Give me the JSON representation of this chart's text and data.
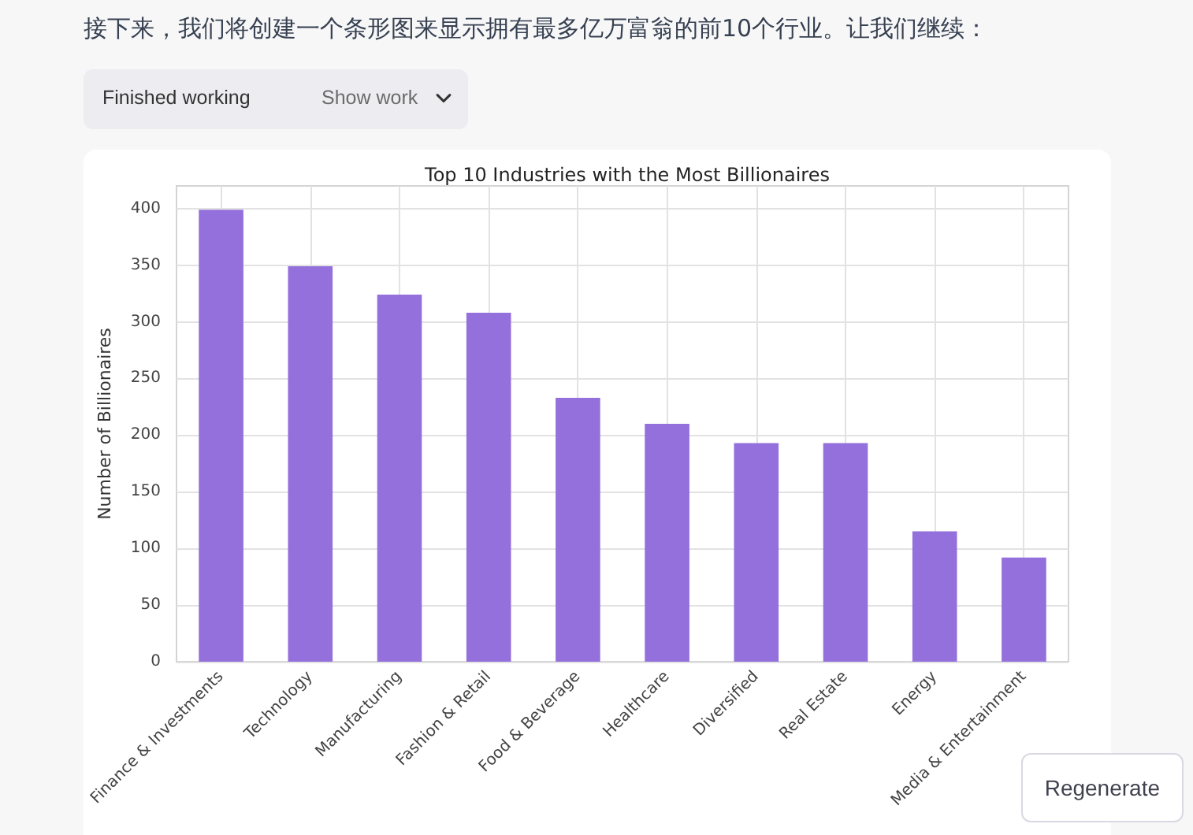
{
  "chart_data": {
    "type": "bar",
    "title": "Top 10 Industries with the Most Billionaires",
    "ylabel": "Number of Billionaires",
    "categories": [
      "Finance & Investments",
      "Technology",
      "Manufacturing",
      "Fashion & Retail",
      "Food & Beverage",
      "Healthcare",
      "Diversified",
      "Real Estate",
      "Energy",
      "Media & Entertainment"
    ],
    "values": [
      399,
      349,
      324,
      308,
      233,
      210,
      193,
      193,
      115,
      92
    ],
    "color": "#9370db",
    "ylim": [
      0,
      420
    ],
    "yticks": [
      0,
      50,
      100,
      150,
      200,
      250,
      300,
      350,
      400
    ],
    "grid": true,
    "annotations": [
      "接下来，我们将创建一个条形图来显示拥有最多亿万富翁的前10个行业。让我们继续：",
      "Finished working",
      "Show work",
      "Regenerate"
    ]
  }
}
